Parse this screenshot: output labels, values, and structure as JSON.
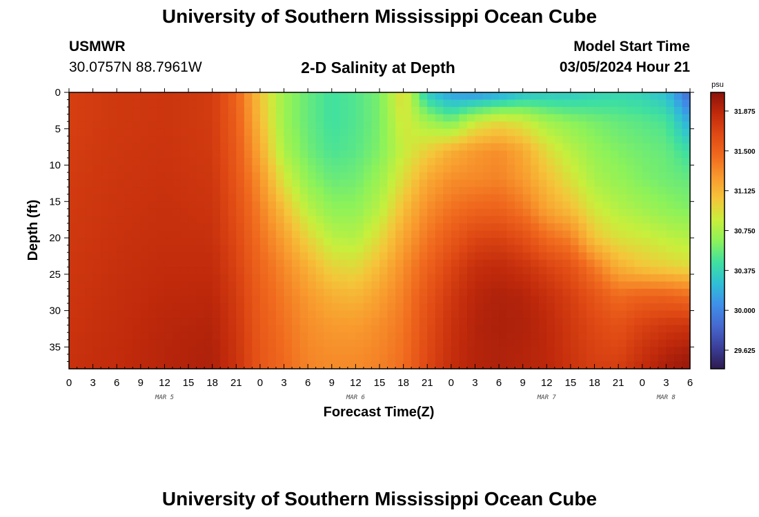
{
  "header": {
    "title": "University of Southern Mississippi Ocean Cube",
    "station": "USMWR",
    "coords": "30.0757N  88.7961W",
    "subtitle": "2-D Salinity at Depth",
    "start_label": "Model Start Time",
    "start_value": "03/05/2024 Hour 21"
  },
  "footer": {
    "title": "University of Southern Mississippi Ocean Cube"
  },
  "chart_data": {
    "type": "heatmap",
    "title": "2-D Salinity at Depth",
    "xlabel": "Forecast Time(Z)",
    "ylabel": "Depth (ft)",
    "x_range": [
      0,
      78
    ],
    "y_range": [
      0,
      38
    ],
    "x_unit": "hours from Mar 5 00Z",
    "x_tick_labels": [
      "0",
      "3",
      "6",
      "9",
      "12",
      "15",
      "18",
      "21",
      "0",
      "3",
      "6",
      "9",
      "12",
      "15",
      "18",
      "21",
      "0",
      "3",
      "6",
      "9",
      "12",
      "15",
      "18",
      "21",
      "0",
      "3",
      "6"
    ],
    "y_ticks": [
      0,
      5,
      10,
      15,
      20,
      25,
      30,
      35
    ],
    "date_labels": [
      {
        "label": "MAR 5",
        "hour": 12
      },
      {
        "label": "MAR 6",
        "hour": 36
      },
      {
        "label": "MAR 7",
        "hour": 60
      },
      {
        "label": "MAR 8",
        "hour": 75
      }
    ],
    "colorbar": {
      "unit": "psu",
      "ticks": [
        "31.875",
        "31.500",
        "31.125",
        "30.750",
        "30.375",
        "30.000",
        "29.625"
      ],
      "tick_values": [
        31.875,
        31.5,
        31.125,
        30.75,
        30.375,
        30.0,
        29.625
      ],
      "vmin": 29.45,
      "vmax": 32.05,
      "colors": [
        "#2d1b4e",
        "#3b3f9a",
        "#4668cf",
        "#3f8fe9",
        "#2fbfd6",
        "#3fe0a0",
        "#8cf25a",
        "#c8ef3c",
        "#f5c53a",
        "#f89a2e",
        "#f06a1e",
        "#e04a14",
        "#c12a0b",
        "#8c120a"
      ]
    },
    "depth_levels": [
      0,
      4,
      8,
      12,
      16,
      20,
      24,
      28,
      32,
      36,
      38
    ],
    "time_points": [
      0,
      6,
      12,
      18,
      21,
      24,
      27,
      30,
      33,
      36,
      39,
      42,
      45,
      48,
      51,
      54,
      57,
      60,
      63,
      66,
      69,
      72,
      75,
      78
    ],
    "salinity_columns": [
      [
        31.72,
        31.72,
        31.73,
        31.74,
        31.75,
        31.76,
        31.77,
        31.78,
        31.79,
        31.8,
        31.8
      ],
      [
        31.76,
        31.76,
        31.77,
        31.78,
        31.79,
        31.8,
        31.81,
        31.82,
        31.83,
        31.84,
        31.84
      ],
      [
        31.78,
        31.78,
        31.79,
        31.8,
        31.81,
        31.82,
        31.84,
        31.86,
        31.88,
        31.89,
        31.89
      ],
      [
        31.74,
        31.74,
        31.75,
        31.77,
        31.79,
        31.81,
        31.84,
        31.87,
        31.9,
        31.92,
        31.92
      ],
      [
        31.5,
        31.52,
        31.55,
        31.58,
        31.62,
        31.66,
        31.7,
        31.74,
        31.77,
        31.79,
        31.79
      ],
      [
        31.05,
        31.1,
        31.18,
        31.28,
        31.36,
        31.42,
        31.48,
        31.52,
        31.55,
        31.57,
        31.57
      ],
      [
        30.7,
        30.7,
        30.75,
        30.9,
        31.08,
        31.22,
        31.32,
        31.38,
        31.42,
        31.45,
        31.46
      ],
      [
        30.55,
        30.55,
        30.58,
        30.66,
        30.8,
        30.98,
        31.15,
        31.25,
        31.3,
        31.33,
        31.34
      ],
      [
        30.45,
        30.45,
        30.48,
        30.56,
        30.66,
        30.8,
        30.98,
        31.15,
        31.25,
        31.3,
        31.31
      ],
      [
        30.5,
        30.5,
        30.52,
        30.58,
        30.66,
        30.78,
        30.95,
        31.12,
        31.24,
        31.3,
        31.31
      ],
      [
        30.6,
        30.6,
        30.62,
        30.7,
        30.8,
        30.95,
        31.1,
        31.22,
        31.3,
        31.34,
        31.35
      ],
      [
        30.98,
        30.9,
        30.85,
        30.95,
        31.08,
        31.2,
        31.3,
        31.36,
        31.4,
        31.43,
        31.44
      ],
      [
        30.3,
        30.72,
        31.0,
        31.18,
        31.3,
        31.4,
        31.5,
        31.58,
        31.63,
        31.66,
        31.67
      ],
      [
        30.1,
        30.6,
        31.15,
        31.3,
        31.42,
        31.55,
        31.68,
        31.76,
        31.8,
        31.82,
        31.83
      ],
      [
        30.05,
        30.85,
        31.25,
        31.32,
        31.48,
        31.68,
        31.82,
        31.88,
        31.9,
        31.9,
        31.9
      ],
      [
        30.12,
        30.95,
        31.3,
        31.35,
        31.5,
        31.7,
        31.85,
        31.92,
        31.93,
        31.92,
        31.92
      ],
      [
        30.25,
        30.88,
        31.18,
        31.25,
        31.4,
        31.62,
        31.8,
        31.9,
        31.92,
        31.9,
        31.9
      ],
      [
        30.3,
        30.72,
        30.95,
        31.08,
        31.2,
        31.45,
        31.7,
        31.82,
        31.86,
        31.87,
        31.87
      ],
      [
        30.3,
        30.65,
        30.8,
        30.92,
        31.08,
        31.35,
        31.6,
        31.72,
        31.76,
        31.78,
        31.79
      ],
      [
        30.35,
        30.6,
        30.68,
        30.75,
        30.88,
        31.05,
        31.38,
        31.58,
        31.66,
        31.7,
        31.72
      ],
      [
        30.38,
        30.55,
        30.62,
        30.68,
        30.78,
        30.92,
        31.15,
        31.45,
        31.6,
        31.68,
        31.72
      ],
      [
        30.35,
        30.52,
        30.58,
        30.62,
        30.72,
        30.88,
        31.05,
        31.5,
        31.7,
        31.8,
        31.84
      ],
      [
        30.25,
        30.48,
        30.55,
        30.58,
        30.66,
        30.82,
        31.0,
        31.5,
        31.76,
        31.9,
        31.94
      ],
      [
        29.85,
        30.15,
        30.42,
        30.55,
        30.62,
        30.78,
        30.95,
        31.45,
        31.78,
        31.96,
        32.0
      ]
    ]
  }
}
